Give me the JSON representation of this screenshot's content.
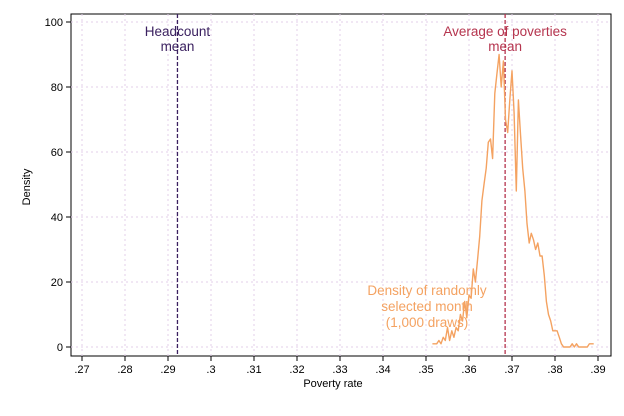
{
  "chart_data": {
    "type": "line",
    "title": "",
    "xlabel": "Poverty rate",
    "ylabel": "Density",
    "xlim": [
      0.267,
      0.392
    ],
    "ylim": [
      0,
      100
    ],
    "grid": true,
    "x_ticks": [
      {
        "value": 0.27,
        "label": ".27"
      },
      {
        "value": 0.28,
        "label": ".28"
      },
      {
        "value": 0.29,
        "label": ".29"
      },
      {
        "value": 0.3,
        "label": ".3"
      },
      {
        "value": 0.31,
        "label": ".31"
      },
      {
        "value": 0.32,
        "label": ".32"
      },
      {
        "value": 0.33,
        "label": ".33"
      },
      {
        "value": 0.34,
        "label": ".34"
      },
      {
        "value": 0.35,
        "label": ".35"
      },
      {
        "value": 0.36,
        "label": ".36"
      },
      {
        "value": 0.37,
        "label": ".37"
      },
      {
        "value": 0.38,
        "label": ".38"
      },
      {
        "value": 0.39,
        "label": ".39"
      }
    ],
    "y_ticks": [
      {
        "value": 0,
        "label": "0"
      },
      {
        "value": 20,
        "label": "20"
      },
      {
        "value": 40,
        "label": "40"
      },
      {
        "value": 60,
        "label": "60"
      },
      {
        "value": 80,
        "label": "80"
      },
      {
        "value": 100,
        "label": "100"
      }
    ],
    "series": [
      {
        "color": "#f4a261",
        "x": [
          0.3515,
          0.3525,
          0.353,
          0.3535,
          0.354,
          0.3545,
          0.355,
          0.3555,
          0.356,
          0.3565,
          0.357,
          0.3575,
          0.358,
          0.3585,
          0.359,
          0.3595,
          0.36,
          0.3605,
          0.361,
          0.3615,
          0.362,
          0.3625,
          0.363,
          0.3635,
          0.364,
          0.3645,
          0.365,
          0.3655,
          0.366,
          0.3665,
          0.367,
          0.3675,
          0.368,
          0.3685,
          0.369,
          0.3695,
          0.37,
          0.3705,
          0.371,
          0.3715,
          0.372,
          0.3725,
          0.373,
          0.3735,
          0.374,
          0.3745,
          0.375,
          0.3755,
          0.376,
          0.3765,
          0.377,
          0.3775,
          0.378,
          0.3785,
          0.379,
          0.3795,
          0.38,
          0.3805,
          0.381,
          0.3815,
          0.382,
          0.3825,
          0.383,
          0.3835,
          0.384,
          0.3845,
          0.385,
          0.3855,
          0.386,
          0.3865,
          0.387,
          0.3875,
          0.388,
          0.389
        ],
        "y": [
          1,
          1,
          2,
          1,
          3,
          2,
          6,
          2,
          5,
          3,
          6,
          5,
          10,
          8,
          14,
          9,
          16,
          15,
          24,
          20,
          27,
          34,
          45,
          50,
          55,
          63,
          64,
          58,
          78,
          84,
          90,
          80,
          88,
          70,
          66,
          76,
          85,
          72,
          48,
          76,
          65,
          55,
          48,
          38,
          32,
          35,
          33,
          30,
          32,
          28,
          28,
          22,
          14,
          10,
          8,
          5,
          5,
          5,
          3,
          1,
          0,
          0,
          0,
          0,
          1,
          0,
          1,
          0,
          0,
          0,
          0,
          0,
          1,
          1
        ]
      }
    ],
    "reference_lines": [
      {
        "x": 0.2922,
        "color": "#3b2160",
        "label_lines": [
          "Headcount",
          "mean"
        ]
      },
      {
        "x": 0.3684,
        "color": "#b5344e",
        "label_lines": [
          "Average of poverties",
          "mean"
        ]
      }
    ],
    "annotations": [
      {
        "lines": [
          "Density of randomly",
          "selected month",
          "(1,000 draws)"
        ],
        "color": "#f4a261"
      }
    ]
  }
}
